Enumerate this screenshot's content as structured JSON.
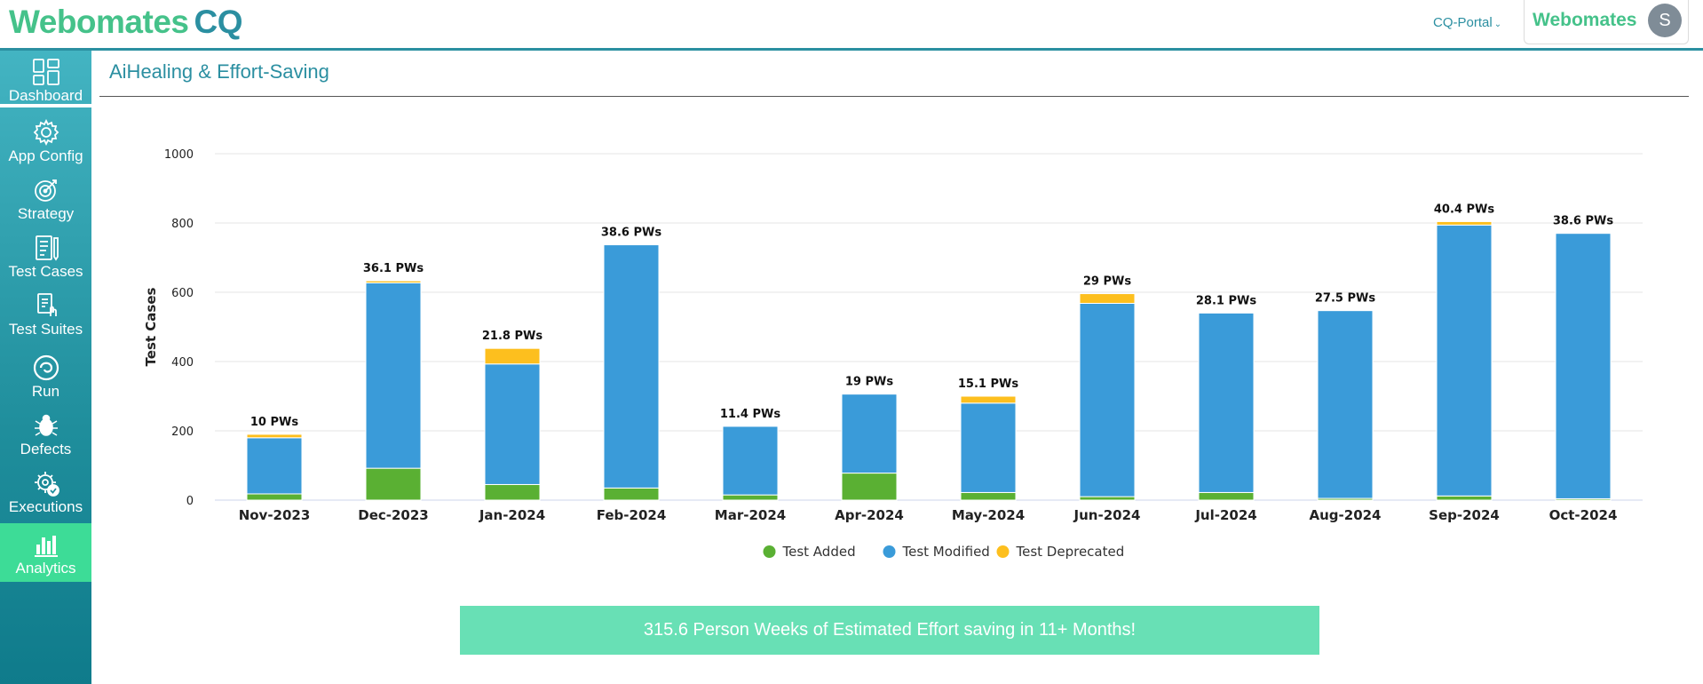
{
  "header": {
    "logo_main": "Webomates",
    "logo_suffix": "CQ",
    "portal_label": "CQ-Portal",
    "brand_name": "Webomates",
    "avatar_initial": "S"
  },
  "sidebar": {
    "items": [
      {
        "label": "Dashboard",
        "icon": "dashboard-icon"
      },
      {
        "label": "App Config",
        "icon": "gear-icon"
      },
      {
        "label": "Strategy",
        "icon": "target-icon"
      },
      {
        "label": "Test Cases",
        "icon": "test-cases-icon"
      },
      {
        "label": "Test Suites",
        "icon": "test-suites-icon"
      },
      {
        "label": "Run",
        "icon": "run-icon"
      },
      {
        "label": "Defects",
        "icon": "bug-icon"
      },
      {
        "label": "Executions",
        "icon": "executions-icon"
      },
      {
        "label": "Analytics",
        "icon": "analytics-icon"
      }
    ],
    "active": "Analytics",
    "colors": {
      "bar": "#2ea3b3",
      "active": "#3ddc97"
    }
  },
  "page": {
    "title": "AiHealing & Effort-Saving"
  },
  "chart_data": {
    "type": "bar",
    "stacked": true,
    "title": "",
    "xlabel": "",
    "ylabel": "Test Cases",
    "ylim": [
      0,
      1000
    ],
    "yticks": [
      0,
      200,
      400,
      600,
      800,
      1000
    ],
    "grid": true,
    "legend_position": "bottom",
    "categories": [
      "Nov-2023",
      "Dec-2023",
      "Jan-2024",
      "Feb-2024",
      "Mar-2024",
      "Apr-2024",
      "May-2024",
      "Jun-2024",
      "Jul-2024",
      "Aug-2024",
      "Sep-2024",
      "Oct-2024"
    ],
    "series": [
      {
        "name": "Test Added",
        "color": "#5ab033",
        "values": [
          18,
          92,
          45,
          35,
          15,
          78,
          22,
          10,
          22,
          5,
          12,
          4
        ]
      },
      {
        "name": "Test Modified",
        "color": "#3a9bd9",
        "values": [
          162,
          535,
          348,
          702,
          198,
          228,
          258,
          558,
          518,
          542,
          782,
          766
        ]
      },
      {
        "name": "Test Deprecated",
        "color": "#fdbf1e",
        "values": [
          10,
          6,
          45,
          0,
          0,
          0,
          20,
          28,
          0,
          0,
          10,
          0
        ]
      }
    ],
    "bar_labels": [
      "10 PWs",
      "36.1 PWs",
      "21.8 PWs",
      "38.6 PWs",
      "11.4 PWs",
      "19 PWs",
      "15.1 PWs",
      "29 PWs",
      "28.1 PWs",
      "27.5 PWs",
      "40.4 PWs",
      "38.6 PWs"
    ]
  },
  "summary": {
    "text": "315.6 Person Weeks of Estimated Effort saving in 11+ Months!"
  }
}
